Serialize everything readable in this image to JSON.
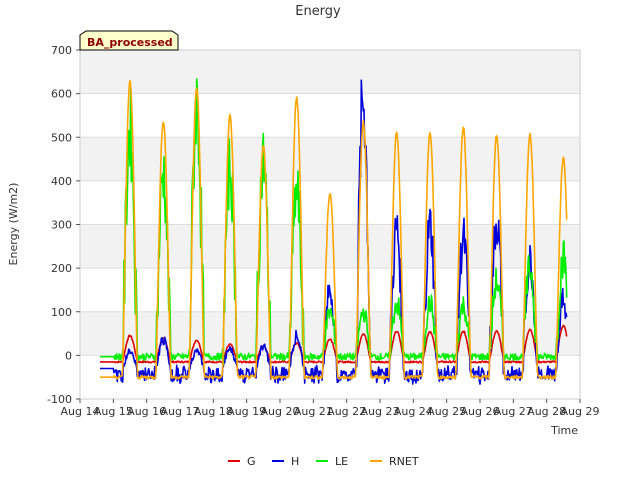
{
  "chart_data": {
    "type": "line",
    "title": "Energy",
    "xlabel": "Time",
    "ylabel": "Energy (W/m2)",
    "badge": "BA_processed",
    "ylim": [
      -100,
      700
    ],
    "xlim": [
      14,
      29
    ],
    "y_ticks": [
      -100,
      0,
      100,
      200,
      300,
      400,
      500,
      600,
      700
    ],
    "x_ticks": [
      14,
      15,
      16,
      17,
      18,
      19,
      20,
      21,
      22,
      23,
      24,
      25,
      26,
      27,
      28,
      29
    ],
    "x_tick_labels": [
      "Aug 14",
      "Aug 15",
      "Aug 16",
      "Aug 17",
      "Aug 18",
      "Aug 19",
      "Aug 20",
      "Aug 21",
      "Aug 22",
      "Aug 23",
      "Aug 24",
      "Aug 25",
      "Aug 26",
      "Aug 27",
      "Aug 28",
      "Aug 29"
    ],
    "grid": true,
    "legend_position": "bottom-center",
    "days": [
      15,
      16,
      17,
      18,
      19,
      20,
      21,
      22,
      23,
      24,
      25,
      26,
      27,
      28
    ],
    "series": [
      {
        "name": "G",
        "color": "#e00000",
        "base": -15,
        "peak": [
          45,
          38,
          35,
          25,
          22,
          28,
          38,
          50,
          55,
          55,
          55,
          55,
          60,
          68
        ]
      },
      {
        "name": "H",
        "color": "#0000dd",
        "base": -30,
        "peak": [
          10,
          35,
          10,
          15,
          20,
          45,
          150,
          590,
          290,
          300,
          270,
          310,
          220,
          130
        ]
      },
      {
        "name": "LE",
        "color": "#00ee00",
        "base": -3,
        "peak": [
          520,
          420,
          580,
          430,
          450,
          380,
          100,
          100,
          120,
          120,
          115,
          170,
          200,
          225
        ]
      },
      {
        "name": "RNET",
        "color": "#ffa500",
        "base": -50,
        "peak": [
          628,
          538,
          615,
          552,
          480,
          590,
          372,
          535,
          510,
          510,
          522,
          505,
          508,
          452
        ]
      }
    ]
  }
}
